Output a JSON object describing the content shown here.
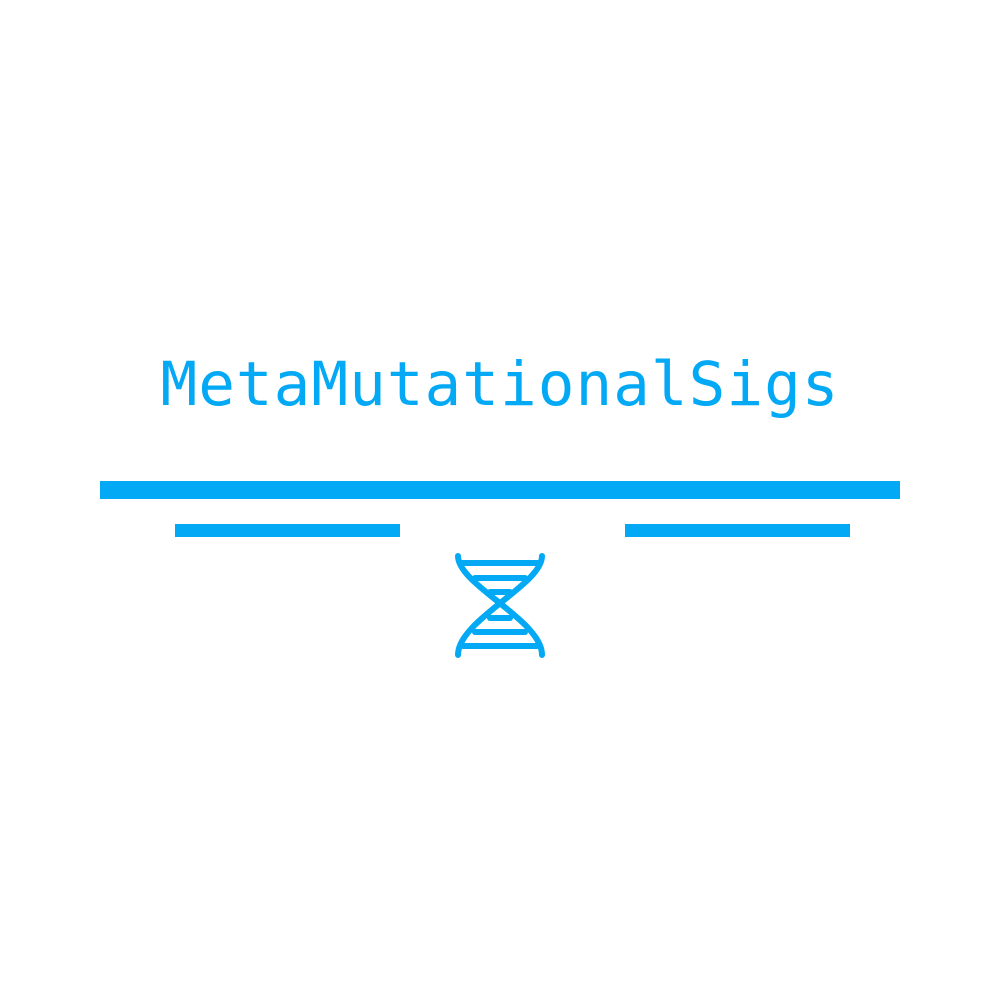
{
  "logo": {
    "title": "MetaMutationalSigs",
    "accent_color": "#03a9f4",
    "background_color": "#ffffff",
    "icon": "dna-icon"
  }
}
